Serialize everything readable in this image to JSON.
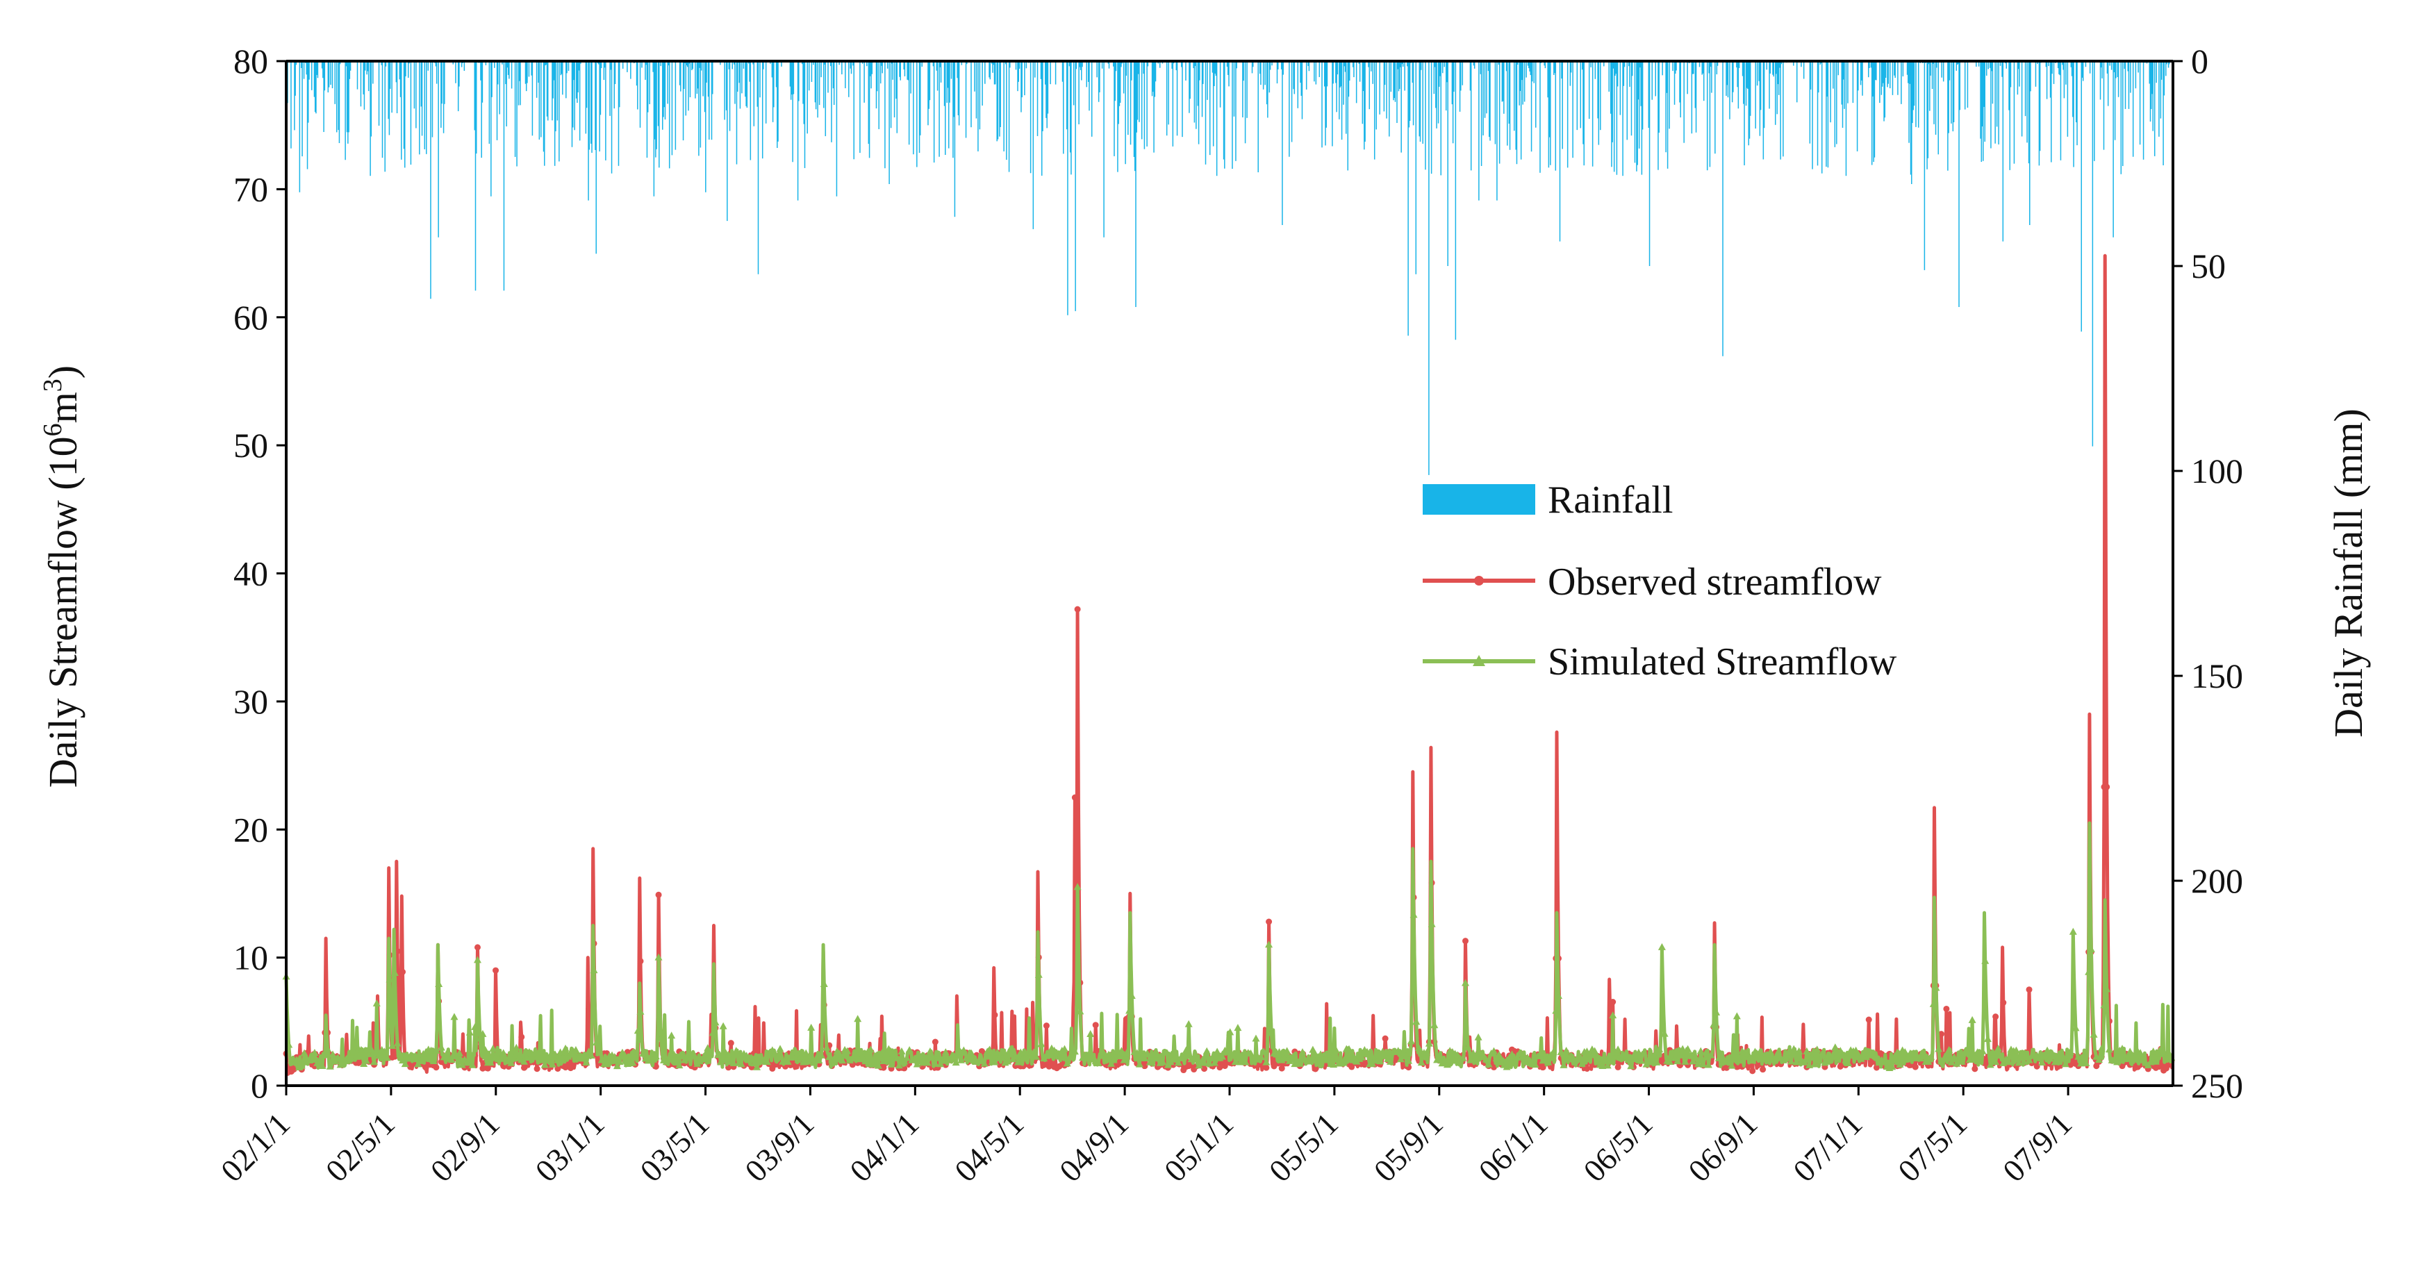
{
  "chart_data": {
    "type": "line",
    "xlabel": "",
    "ylabel_left": "Daily Streamflow (10",
    "ylabel_left_sup": "6",
    "ylabel_left_unit": "m",
    "ylabel_left_sup2": "3",
    "ylabel_left_close": ")",
    "ylabel_right": "Daily Rainfall (mm)",
    "ylim_left": [
      0,
      80
    ],
    "ylim_right": [
      0,
      250
    ],
    "right_axis_inverted": true,
    "yticks_left": [
      "0",
      "10",
      "20",
      "30",
      "40",
      "50",
      "60",
      "70",
      "80"
    ],
    "yticks_right": [
      "0",
      "50",
      "100",
      "150",
      "200",
      "250"
    ],
    "x_range_months": [
      0,
      72
    ],
    "xticks": [
      {
        "label": "02/1/1",
        "month": 0
      },
      {
        "label": "02/5/1",
        "month": 4
      },
      {
        "label": "02/9/1",
        "month": 8
      },
      {
        "label": "03/1/1",
        "month": 12
      },
      {
        "label": "03/5/1",
        "month": 16
      },
      {
        "label": "03/9/1",
        "month": 20
      },
      {
        "label": "04/1/1",
        "month": 24
      },
      {
        "label": "04/5/1",
        "month": 28
      },
      {
        "label": "04/9/1",
        "month": 32
      },
      {
        "label": "05/1/1",
        "month": 36
      },
      {
        "label": "05/5/1",
        "month": 40
      },
      {
        "label": "05/9/1",
        "month": 44
      },
      {
        "label": "06/1/1",
        "month": 48
      },
      {
        "label": "06/5/1",
        "month": 52
      },
      {
        "label": "06/9/1",
        "month": 56
      },
      {
        "label": "07/1/1",
        "month": 60
      },
      {
        "label": "07/5/1",
        "month": 64
      },
      {
        "label": "07/9/1",
        "month": 68
      }
    ],
    "legend_position": "center-right",
    "series": [
      {
        "name": "Rainfall",
        "type": "bar",
        "axis": "right",
        "color": "#18b4e8",
        "peaks": [
          {
            "month": 0.5,
            "value": 32
          },
          {
            "month": 2.0,
            "value": 20
          },
          {
            "month": 3.2,
            "value": 28
          },
          {
            "month": 4.5,
            "value": 26
          },
          {
            "month": 5.5,
            "value": 58
          },
          {
            "month": 5.8,
            "value": 43
          },
          {
            "month": 7.2,
            "value": 56
          },
          {
            "month": 7.8,
            "value": 33
          },
          {
            "month": 8.3,
            "value": 56
          },
          {
            "month": 11.5,
            "value": 34
          },
          {
            "month": 11.8,
            "value": 47
          },
          {
            "month": 14.0,
            "value": 33
          },
          {
            "month": 16.0,
            "value": 32
          },
          {
            "month": 16.8,
            "value": 39
          },
          {
            "month": 18.0,
            "value": 52
          },
          {
            "month": 19.5,
            "value": 34
          },
          {
            "month": 21.0,
            "value": 33
          },
          {
            "month": 23.0,
            "value": 30
          },
          {
            "month": 25.5,
            "value": 38
          },
          {
            "month": 28.5,
            "value": 41
          },
          {
            "month": 29.8,
            "value": 62
          },
          {
            "month": 30.1,
            "value": 61
          },
          {
            "month": 31.2,
            "value": 43
          },
          {
            "month": 32.4,
            "value": 60
          },
          {
            "month": 35.5,
            "value": 28
          },
          {
            "month": 38.0,
            "value": 40
          },
          {
            "month": 41.5,
            "value": 24
          },
          {
            "month": 42.8,
            "value": 67
          },
          {
            "month": 43.1,
            "value": 52
          },
          {
            "month": 43.6,
            "value": 101
          },
          {
            "month": 44.3,
            "value": 50
          },
          {
            "month": 44.6,
            "value": 68
          },
          {
            "month": 45.5,
            "value": 34
          },
          {
            "month": 46.2,
            "value": 34
          },
          {
            "month": 48.6,
            "value": 44
          },
          {
            "month": 51.0,
            "value": 28
          },
          {
            "month": 52.0,
            "value": 50
          },
          {
            "month": 54.8,
            "value": 72
          },
          {
            "month": 57.0,
            "value": 24
          },
          {
            "month": 59.5,
            "value": 28
          },
          {
            "month": 62.0,
            "value": 30
          },
          {
            "month": 62.5,
            "value": 51
          },
          {
            "month": 63.8,
            "value": 60
          },
          {
            "month": 65.5,
            "value": 44
          },
          {
            "month": 66.5,
            "value": 40
          },
          {
            "month": 68.5,
            "value": 66
          },
          {
            "month": 68.9,
            "value": 94
          },
          {
            "month": 69.7,
            "value": 43
          },
          {
            "month": 71.5,
            "value": 14
          }
        ]
      },
      {
        "name": "Observed streamflow",
        "type": "line",
        "axis": "left",
        "color": "#e05050",
        "peaks": [
          {
            "month": 0.0,
            "value": 2.5
          },
          {
            "month": 1.5,
            "value": 11.5
          },
          {
            "month": 2.3,
            "value": 4.0
          },
          {
            "month": 3.5,
            "value": 7.0
          },
          {
            "month": 3.9,
            "value": 17.0
          },
          {
            "month": 4.2,
            "value": 17.5
          },
          {
            "month": 4.4,
            "value": 14.8
          },
          {
            "month": 5.8,
            "value": 11.0
          },
          {
            "month": 7.3,
            "value": 10.8
          },
          {
            "month": 8.0,
            "value": 9.0
          },
          {
            "month": 11.5,
            "value": 10.0
          },
          {
            "month": 11.7,
            "value": 18.5
          },
          {
            "month": 13.5,
            "value": 16.2
          },
          {
            "month": 14.2,
            "value": 14.9
          },
          {
            "month": 16.3,
            "value": 12.5
          },
          {
            "month": 20.5,
            "value": 10.5
          },
          {
            "month": 25.6,
            "value": 7.0
          },
          {
            "month": 27.0,
            "value": 9.2
          },
          {
            "month": 28.5,
            "value": 6.5
          },
          {
            "month": 28.7,
            "value": 16.7
          },
          {
            "month": 30.1,
            "value": 22.5
          },
          {
            "month": 30.2,
            "value": 37.2
          },
          {
            "month": 32.2,
            "value": 15.0
          },
          {
            "month": 37.5,
            "value": 12.8
          },
          {
            "month": 43.0,
            "value": 24.5
          },
          {
            "month": 43.7,
            "value": 26.4
          },
          {
            "month": 45.0,
            "value": 11.3
          },
          {
            "month": 48.5,
            "value": 27.6
          },
          {
            "month": 50.5,
            "value": 8.3
          },
          {
            "month": 54.5,
            "value": 12.7
          },
          {
            "month": 62.9,
            "value": 21.7
          },
          {
            "month": 65.5,
            "value": 10.8
          },
          {
            "month": 66.5,
            "value": 7.5
          },
          {
            "month": 68.8,
            "value": 29.0
          },
          {
            "month": 69.4,
            "value": 64.8
          },
          {
            "month": 71.5,
            "value": 1.5
          }
        ]
      },
      {
        "name": "Simulated Streamflow",
        "type": "line",
        "axis": "left",
        "color": "#8bbf55",
        "peaks": [
          {
            "month": 0.0,
            "value": 8.5
          },
          {
            "month": 1.5,
            "value": 5.5
          },
          {
            "month": 3.9,
            "value": 11.5
          },
          {
            "month": 4.1,
            "value": 12.2
          },
          {
            "month": 5.8,
            "value": 11.0
          },
          {
            "month": 7.3,
            "value": 9.8
          },
          {
            "month": 11.7,
            "value": 12.5
          },
          {
            "month": 13.5,
            "value": 8.0
          },
          {
            "month": 14.2,
            "value": 10.0
          },
          {
            "month": 16.3,
            "value": 9.5
          },
          {
            "month": 20.5,
            "value": 11.0
          },
          {
            "month": 28.7,
            "value": 12.0
          },
          {
            "month": 30.2,
            "value": 15.5
          },
          {
            "month": 32.2,
            "value": 13.5
          },
          {
            "month": 37.5,
            "value": 11.0
          },
          {
            "month": 43.0,
            "value": 18.5
          },
          {
            "month": 43.7,
            "value": 17.5
          },
          {
            "month": 45.0,
            "value": 8.0
          },
          {
            "month": 48.5,
            "value": 13.5
          },
          {
            "month": 52.5,
            "value": 10.8
          },
          {
            "month": 54.5,
            "value": 11.0
          },
          {
            "month": 62.9,
            "value": 14.7
          },
          {
            "month": 64.8,
            "value": 13.5
          },
          {
            "month": 68.2,
            "value": 12.0
          },
          {
            "month": 68.8,
            "value": 20.5
          },
          {
            "month": 69.4,
            "value": 14.5
          },
          {
            "month": 71.5,
            "value": 1.0
          }
        ]
      }
    ]
  }
}
